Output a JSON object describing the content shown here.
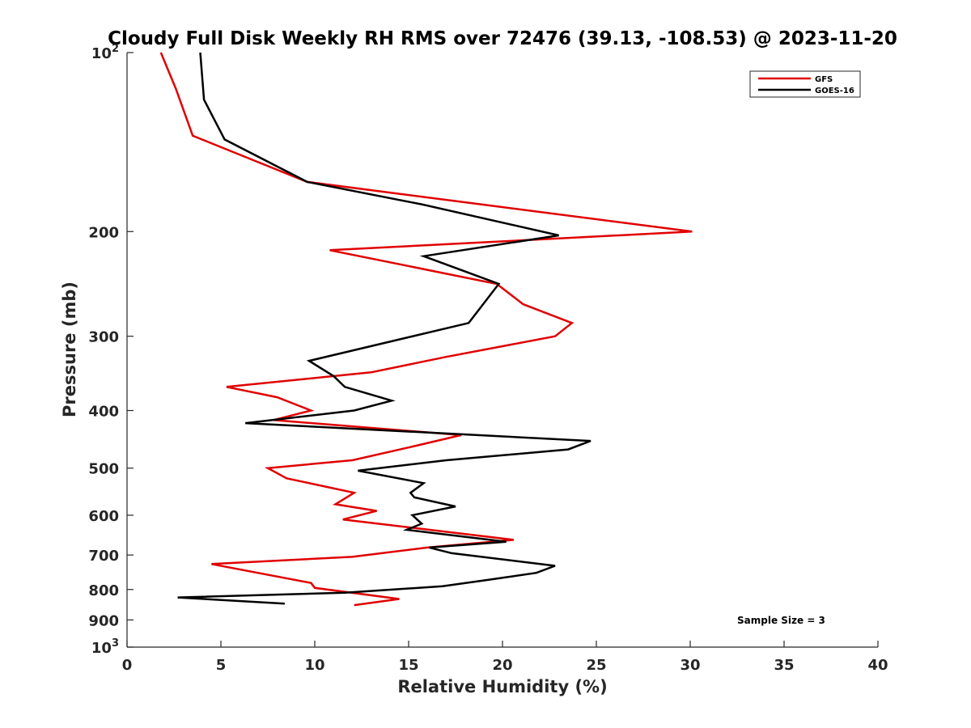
{
  "chart_data": {
    "type": "line",
    "title": "Cloudy Full Disk Weekly RH RMS over 72476 (39.13, -108.53) @ 2023-11-20",
    "xlabel": "Relative Humidity (%)",
    "ylabel": "Pressure (mb)",
    "xlim": [
      0,
      40
    ],
    "ylim": [
      100,
      1000
    ],
    "y_scale": "log",
    "y_reversed": true,
    "grid": false,
    "legend_position": "top-right",
    "x_ticks": [
      "0",
      "5",
      "10",
      "15",
      "20",
      "25",
      "30",
      "35",
      "40"
    ],
    "y_ticks": [
      {
        "value": 100,
        "label": "10",
        "sup": "2"
      },
      {
        "value": 200,
        "label": "200",
        "sup": ""
      },
      {
        "value": 300,
        "label": "300",
        "sup": ""
      },
      {
        "value": 400,
        "label": "400",
        "sup": ""
      },
      {
        "value": 500,
        "label": "500",
        "sup": ""
      },
      {
        "value": 600,
        "label": "600",
        "sup": ""
      },
      {
        "value": 700,
        "label": "700",
        "sup": ""
      },
      {
        "value": 800,
        "label": "800",
        "sup": ""
      },
      {
        "value": 900,
        "label": "900",
        "sup": ""
      },
      {
        "value": 1000,
        "label": "10",
        "sup": "3"
      }
    ],
    "series": [
      {
        "name": "GFS",
        "color": "#e00000",
        "points": [
          [
            1.8,
            100
          ],
          [
            2.6,
            115
          ],
          [
            3.5,
            138
          ],
          [
            9.6,
            165
          ],
          [
            30.1,
            200
          ],
          [
            10.8,
            215
          ],
          [
            19.7,
            245
          ],
          [
            21.1,
            265
          ],
          [
            23.7,
            285
          ],
          [
            22.8,
            300
          ],
          [
            17,
            325
          ],
          [
            13,
            345
          ],
          [
            5.3,
            365
          ],
          [
            8,
            380
          ],
          [
            9.8,
            400
          ],
          [
            7.8,
            415
          ],
          [
            17.8,
            440
          ],
          [
            15.2,
            460
          ],
          [
            12,
            485
          ],
          [
            7.5,
            500
          ],
          [
            8.5,
            520
          ],
          [
            12.1,
            550
          ],
          [
            11.1,
            575
          ],
          [
            13.3,
            590
          ],
          [
            11.5,
            610
          ],
          [
            20.6,
            660
          ],
          [
            16,
            680
          ],
          [
            12,
            705
          ],
          [
            4.5,
            725
          ],
          [
            9.8,
            780
          ],
          [
            10,
            795
          ],
          [
            14.5,
            830
          ],
          [
            12.1,
            850
          ]
        ]
      },
      {
        "name": "GOES-16",
        "color": "#000000",
        "points": [
          [
            3.9,
            100
          ],
          [
            4.1,
            120
          ],
          [
            5.2,
            140
          ],
          [
            9.6,
            165
          ],
          [
            15.7,
            180
          ],
          [
            23,
            203
          ],
          [
            15.8,
            220
          ],
          [
            19.8,
            245
          ],
          [
            18.2,
            285
          ],
          [
            9.7,
            330
          ],
          [
            11,
            350
          ],
          [
            11.6,
            365
          ],
          [
            14.1,
            385
          ],
          [
            12.1,
            400
          ],
          [
            6.3,
            420
          ],
          [
            24.7,
            450
          ],
          [
            23.5,
            465
          ],
          [
            17,
            485
          ],
          [
            12.3,
            505
          ],
          [
            15.8,
            530
          ],
          [
            15.1,
            550
          ],
          [
            15.3,
            560
          ],
          [
            17.5,
            580
          ],
          [
            15.2,
            600
          ],
          [
            15.7,
            620
          ],
          [
            14.9,
            635
          ],
          [
            20.2,
            665
          ],
          [
            16.1,
            680
          ],
          [
            17.3,
            695
          ],
          [
            22.8,
            730
          ],
          [
            21.8,
            750
          ],
          [
            19.3,
            770
          ],
          [
            16.8,
            790
          ],
          [
            11.6,
            810
          ],
          [
            2.7,
            825
          ],
          [
            8.4,
            845
          ]
        ]
      }
    ],
    "annotation": "Sample Size = 3"
  }
}
